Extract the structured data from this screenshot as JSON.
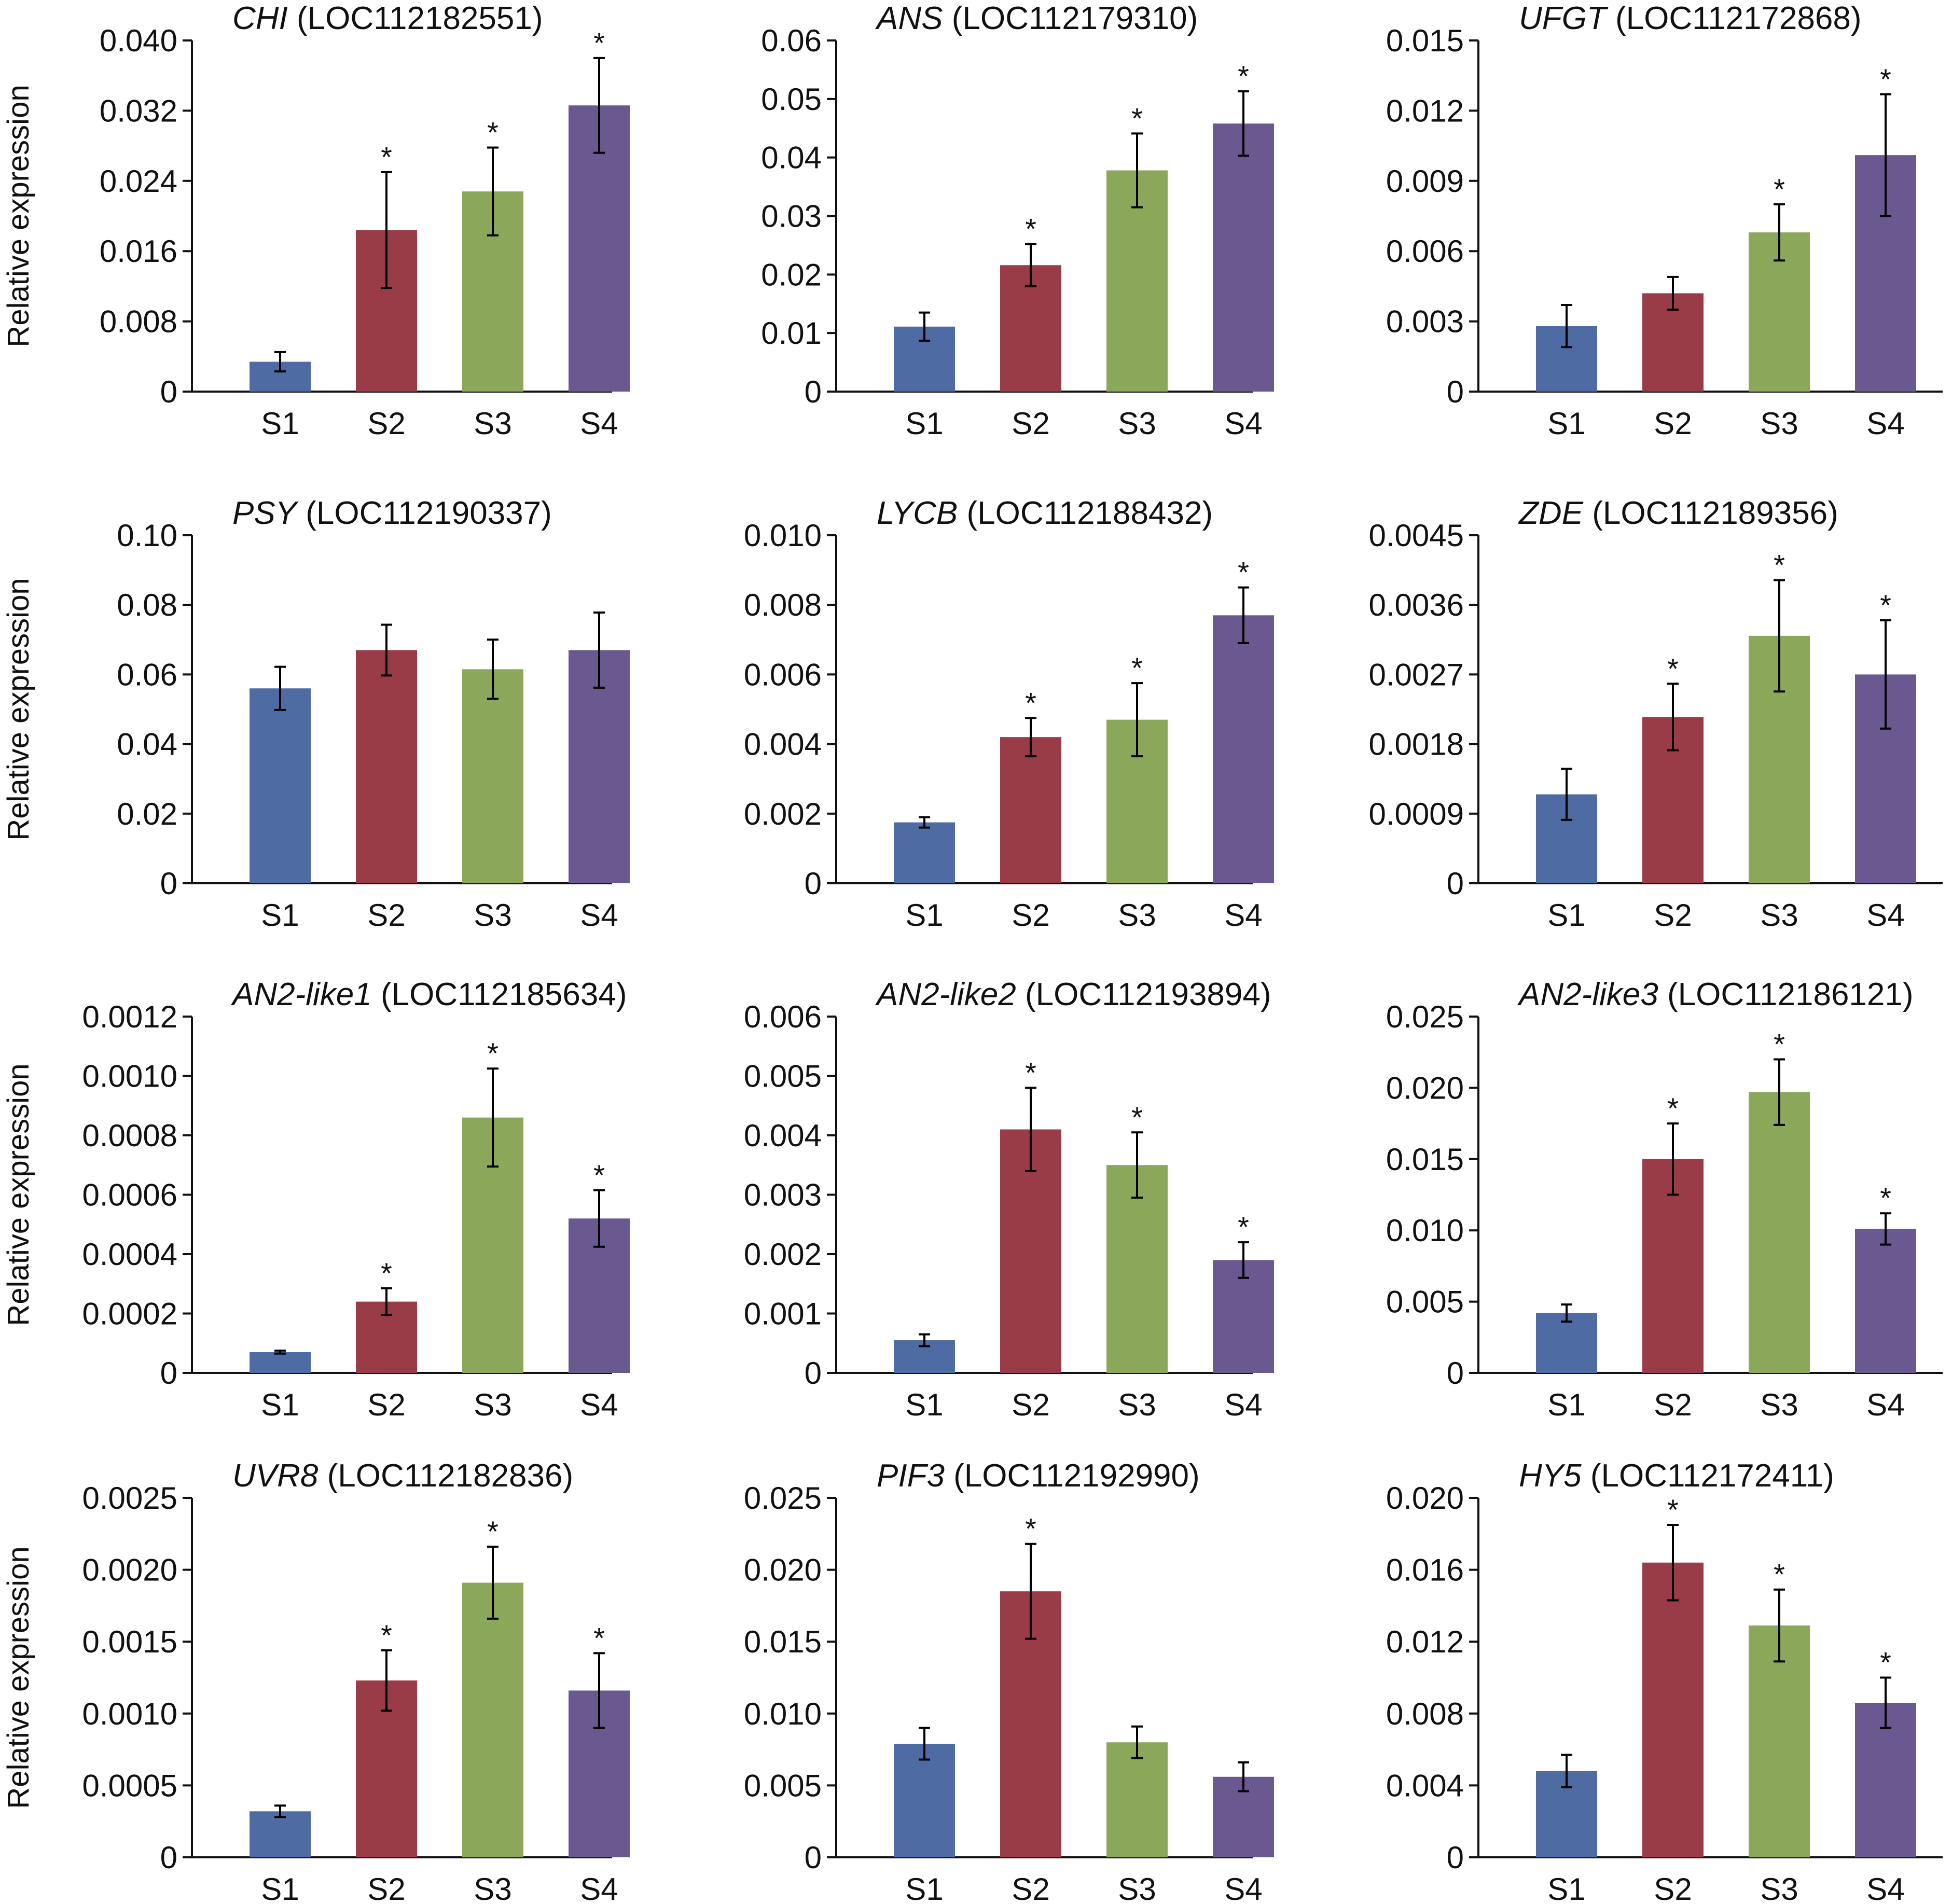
{
  "figure": {
    "bar_colors": [
      "#4E6BA3",
      "#9A3C47",
      "#8BA75A",
      "#6A5891"
    ],
    "axis_color": "#111111",
    "text_color": "#111111"
  },
  "chart_data": [
    {
      "type": "bar",
      "title_gene": "CHI",
      "title_locus": "(LOC112182551)",
      "ylabel": "Relative expression",
      "xlabel": "",
      "categories": [
        "S1",
        "S2",
        "S3",
        "S4"
      ],
      "values": [
        0.0034,
        0.0184,
        0.0228,
        0.0326
      ],
      "errors": [
        0.0011,
        0.0066,
        0.005,
        0.0054
      ],
      "significance": [
        "",
        "*",
        "*",
        "*"
      ],
      "ylim": [
        0,
        0.04
      ],
      "yticks": [
        0,
        0.008,
        0.016,
        0.024,
        0.032,
        0.04
      ],
      "ytick_labels": [
        "0",
        "0.008",
        "0.016",
        "0.024",
        "0.032",
        "0.040"
      ]
    },
    {
      "type": "bar",
      "title_gene": "ANS",
      "title_locus": "(LOC112179310)",
      "ylabel": "",
      "xlabel": "",
      "categories": [
        "S1",
        "S2",
        "S3",
        "S4"
      ],
      "values": [
        0.0111,
        0.0216,
        0.0378,
        0.0458
      ],
      "errors": [
        0.0024,
        0.0036,
        0.0063,
        0.0055
      ],
      "significance": [
        "",
        "*",
        "*",
        "*"
      ],
      "ylim": [
        0,
        0.06
      ],
      "yticks": [
        0,
        0.01,
        0.02,
        0.03,
        0.04,
        0.05,
        0.06
      ],
      "ytick_labels": [
        "0",
        "0.01",
        "0.02",
        "0.03",
        "0.04",
        "0.05",
        "0.06"
      ]
    },
    {
      "type": "bar",
      "title_gene": "UFGT",
      "title_locus": "(LOC112172868)",
      "ylabel": "",
      "xlabel": "",
      "categories": [
        "S1",
        "S2",
        "S3",
        "S4"
      ],
      "values": [
        0.0028,
        0.0042,
        0.0068,
        0.0101
      ],
      "errors": [
        0.0009,
        0.0007,
        0.0012,
        0.0026
      ],
      "significance": [
        "",
        "",
        "*",
        "*"
      ],
      "ylim": [
        0,
        0.015
      ],
      "yticks": [
        0,
        0.003,
        0.006,
        0.009,
        0.012,
        0.015
      ],
      "ytick_labels": [
        "0",
        "0.003",
        "0.006",
        "0.009",
        "0.012",
        "0.015"
      ]
    },
    {
      "type": "bar",
      "title_gene": "PSY",
      "title_locus": "(LOC112190337)",
      "ylabel": "Relative expression",
      "xlabel": "",
      "categories": [
        "S1",
        "S2",
        "S3",
        "S4"
      ],
      "values": [
        0.056,
        0.067,
        0.0615,
        0.067
      ],
      "errors": [
        0.0062,
        0.0073,
        0.0085,
        0.0108
      ],
      "significance": [
        "",
        "",
        "",
        ""
      ],
      "ylim": [
        0,
        0.1
      ],
      "yticks": [
        0,
        0.02,
        0.04,
        0.06,
        0.08,
        0.1
      ],
      "ytick_labels": [
        "0",
        "0.02",
        "0.04",
        "0.06",
        "0.08",
        "0.10"
      ]
    },
    {
      "type": "bar",
      "title_gene": "LYCB",
      "title_locus": "(LOC112188432)",
      "ylabel": "",
      "xlabel": "",
      "categories": [
        "S1",
        "S2",
        "S3",
        "S4"
      ],
      "values": [
        0.00175,
        0.0042,
        0.0047,
        0.0077
      ],
      "errors": [
        0.00015,
        0.00055,
        0.00105,
        0.0008
      ],
      "significance": [
        "",
        "*",
        "*",
        "*"
      ],
      "ylim": [
        0,
        0.01
      ],
      "yticks": [
        0,
        0.002,
        0.004,
        0.006,
        0.008,
        0.01
      ],
      "ytick_labels": [
        "0",
        "0.002",
        "0.004",
        "0.006",
        "0.008",
        "0.010"
      ]
    },
    {
      "type": "bar",
      "title_gene": "ZDE",
      "title_locus": "(LOC112189356)",
      "ylabel": "",
      "xlabel": "",
      "categories": [
        "S1",
        "S2",
        "S3",
        "S4"
      ],
      "values": [
        0.00115,
        0.00215,
        0.0032,
        0.0027
      ],
      "errors": [
        0.00033,
        0.00043,
        0.00072,
        0.0007
      ],
      "significance": [
        "",
        "*",
        "*",
        "*"
      ],
      "ylim": [
        0,
        0.0045
      ],
      "yticks": [
        0,
        0.0009,
        0.0018,
        0.0027,
        0.0036,
        0.0045
      ],
      "ytick_labels": [
        "0",
        "0.0009",
        "0.0018",
        "0.0027",
        "0.0036",
        "0.0045"
      ]
    },
    {
      "type": "bar",
      "title_gene": "AN2-like1",
      "title_locus": "(LOC112185634)",
      "ylabel": "Relative expression",
      "xlabel": "",
      "categories": [
        "S1",
        "S2",
        "S3",
        "S4"
      ],
      "values": [
        7e-05,
        0.00024,
        0.00086,
        0.00052
      ],
      "errors": [
        5e-06,
        4.5e-05,
        0.000165,
        9.5e-05
      ],
      "significance": [
        "",
        "*",
        "*",
        "*"
      ],
      "ylim": [
        0,
        0.0012
      ],
      "yticks": [
        0,
        0.0002,
        0.0004,
        0.0006,
        0.0008,
        0.001,
        0.0012
      ],
      "ytick_labels": [
        "0",
        "0.0002",
        "0.0004",
        "0.0006",
        "0.0008",
        "0.0010",
        "0.0012"
      ]
    },
    {
      "type": "bar",
      "title_gene": "AN2-like2",
      "title_locus": "(LOC112193894)",
      "ylabel": "",
      "xlabel": "",
      "categories": [
        "S1",
        "S2",
        "S3",
        "S4"
      ],
      "values": [
        0.00055,
        0.0041,
        0.0035,
        0.0019
      ],
      "errors": [
        0.0001,
        0.0007,
        0.00055,
        0.0003
      ],
      "significance": [
        "",
        "*",
        "*",
        "*"
      ],
      "ylim": [
        0,
        0.006
      ],
      "yticks": [
        0,
        0.001,
        0.002,
        0.003,
        0.004,
        0.005,
        0.006
      ],
      "ytick_labels": [
        "0",
        "0.001",
        "0.002",
        "0.003",
        "0.004",
        "0.005",
        "0.006"
      ]
    },
    {
      "type": "bar",
      "title_gene": "AN2-like3",
      "title_locus": "(LOC112186121)",
      "ylabel": "",
      "xlabel": "",
      "categories": [
        "S1",
        "S2",
        "S3",
        "S4"
      ],
      "values": [
        0.0042,
        0.015,
        0.0197,
        0.0101
      ],
      "errors": [
        0.0006,
        0.0025,
        0.0023,
        0.0011
      ],
      "significance": [
        "",
        "*",
        "*",
        "*"
      ],
      "ylim": [
        0,
        0.025
      ],
      "yticks": [
        0,
        0.005,
        0.01,
        0.015,
        0.02,
        0.025
      ],
      "ytick_labels": [
        "0",
        "0.005",
        "0.010",
        "0.015",
        "0.020",
        "0.025"
      ]
    },
    {
      "type": "bar",
      "title_gene": "UVR8",
      "title_locus": "(LOC112182836)",
      "ylabel": "Relative expression",
      "xlabel": "",
      "categories": [
        "S1",
        "S2",
        "S3",
        "S4"
      ],
      "values": [
        0.00032,
        0.00123,
        0.00191,
        0.00116
      ],
      "errors": [
        4e-05,
        0.00021,
        0.00025,
        0.00026
      ],
      "significance": [
        "",
        "*",
        "*",
        "*"
      ],
      "ylim": [
        0,
        0.0025
      ],
      "yticks": [
        0,
        0.0005,
        0.001,
        0.0015,
        0.002,
        0.0025
      ],
      "ytick_labels": [
        "0",
        "0.0005",
        "0.0010",
        "0.0015",
        "0.0020",
        "0.0025"
      ]
    },
    {
      "type": "bar",
      "title_gene": "PIF3",
      "title_locus": "(LOC112192990)",
      "ylabel": "",
      "xlabel": "",
      "categories": [
        "S1",
        "S2",
        "S3",
        "S4"
      ],
      "values": [
        0.0079,
        0.0185,
        0.008,
        0.0056
      ],
      "errors": [
        0.0011,
        0.0033,
        0.0011,
        0.001
      ],
      "significance": [
        "",
        "*",
        "",
        ""
      ],
      "ylim": [
        0,
        0.025
      ],
      "yticks": [
        0,
        0.005,
        0.01,
        0.015,
        0.02,
        0.025
      ],
      "ytick_labels": [
        "0",
        "0.005",
        "0.010",
        "0.015",
        "0.020",
        "0.025"
      ]
    },
    {
      "type": "bar",
      "title_gene": "HY5",
      "title_locus": "(LOC112172411)",
      "ylabel": "",
      "xlabel": "",
      "categories": [
        "S1",
        "S2",
        "S3",
        "S4"
      ],
      "values": [
        0.0048,
        0.0164,
        0.0129,
        0.0086
      ],
      "errors": [
        0.0009,
        0.0021,
        0.002,
        0.0014
      ],
      "significance": [
        "",
        "*",
        "*",
        "*"
      ],
      "ylim": [
        0,
        0.02
      ],
      "yticks": [
        0,
        0.004,
        0.008,
        0.012,
        0.016,
        0.02
      ],
      "ytick_labels": [
        "0",
        "0.004",
        "0.008",
        "0.012",
        "0.016",
        "0.020"
      ]
    }
  ]
}
